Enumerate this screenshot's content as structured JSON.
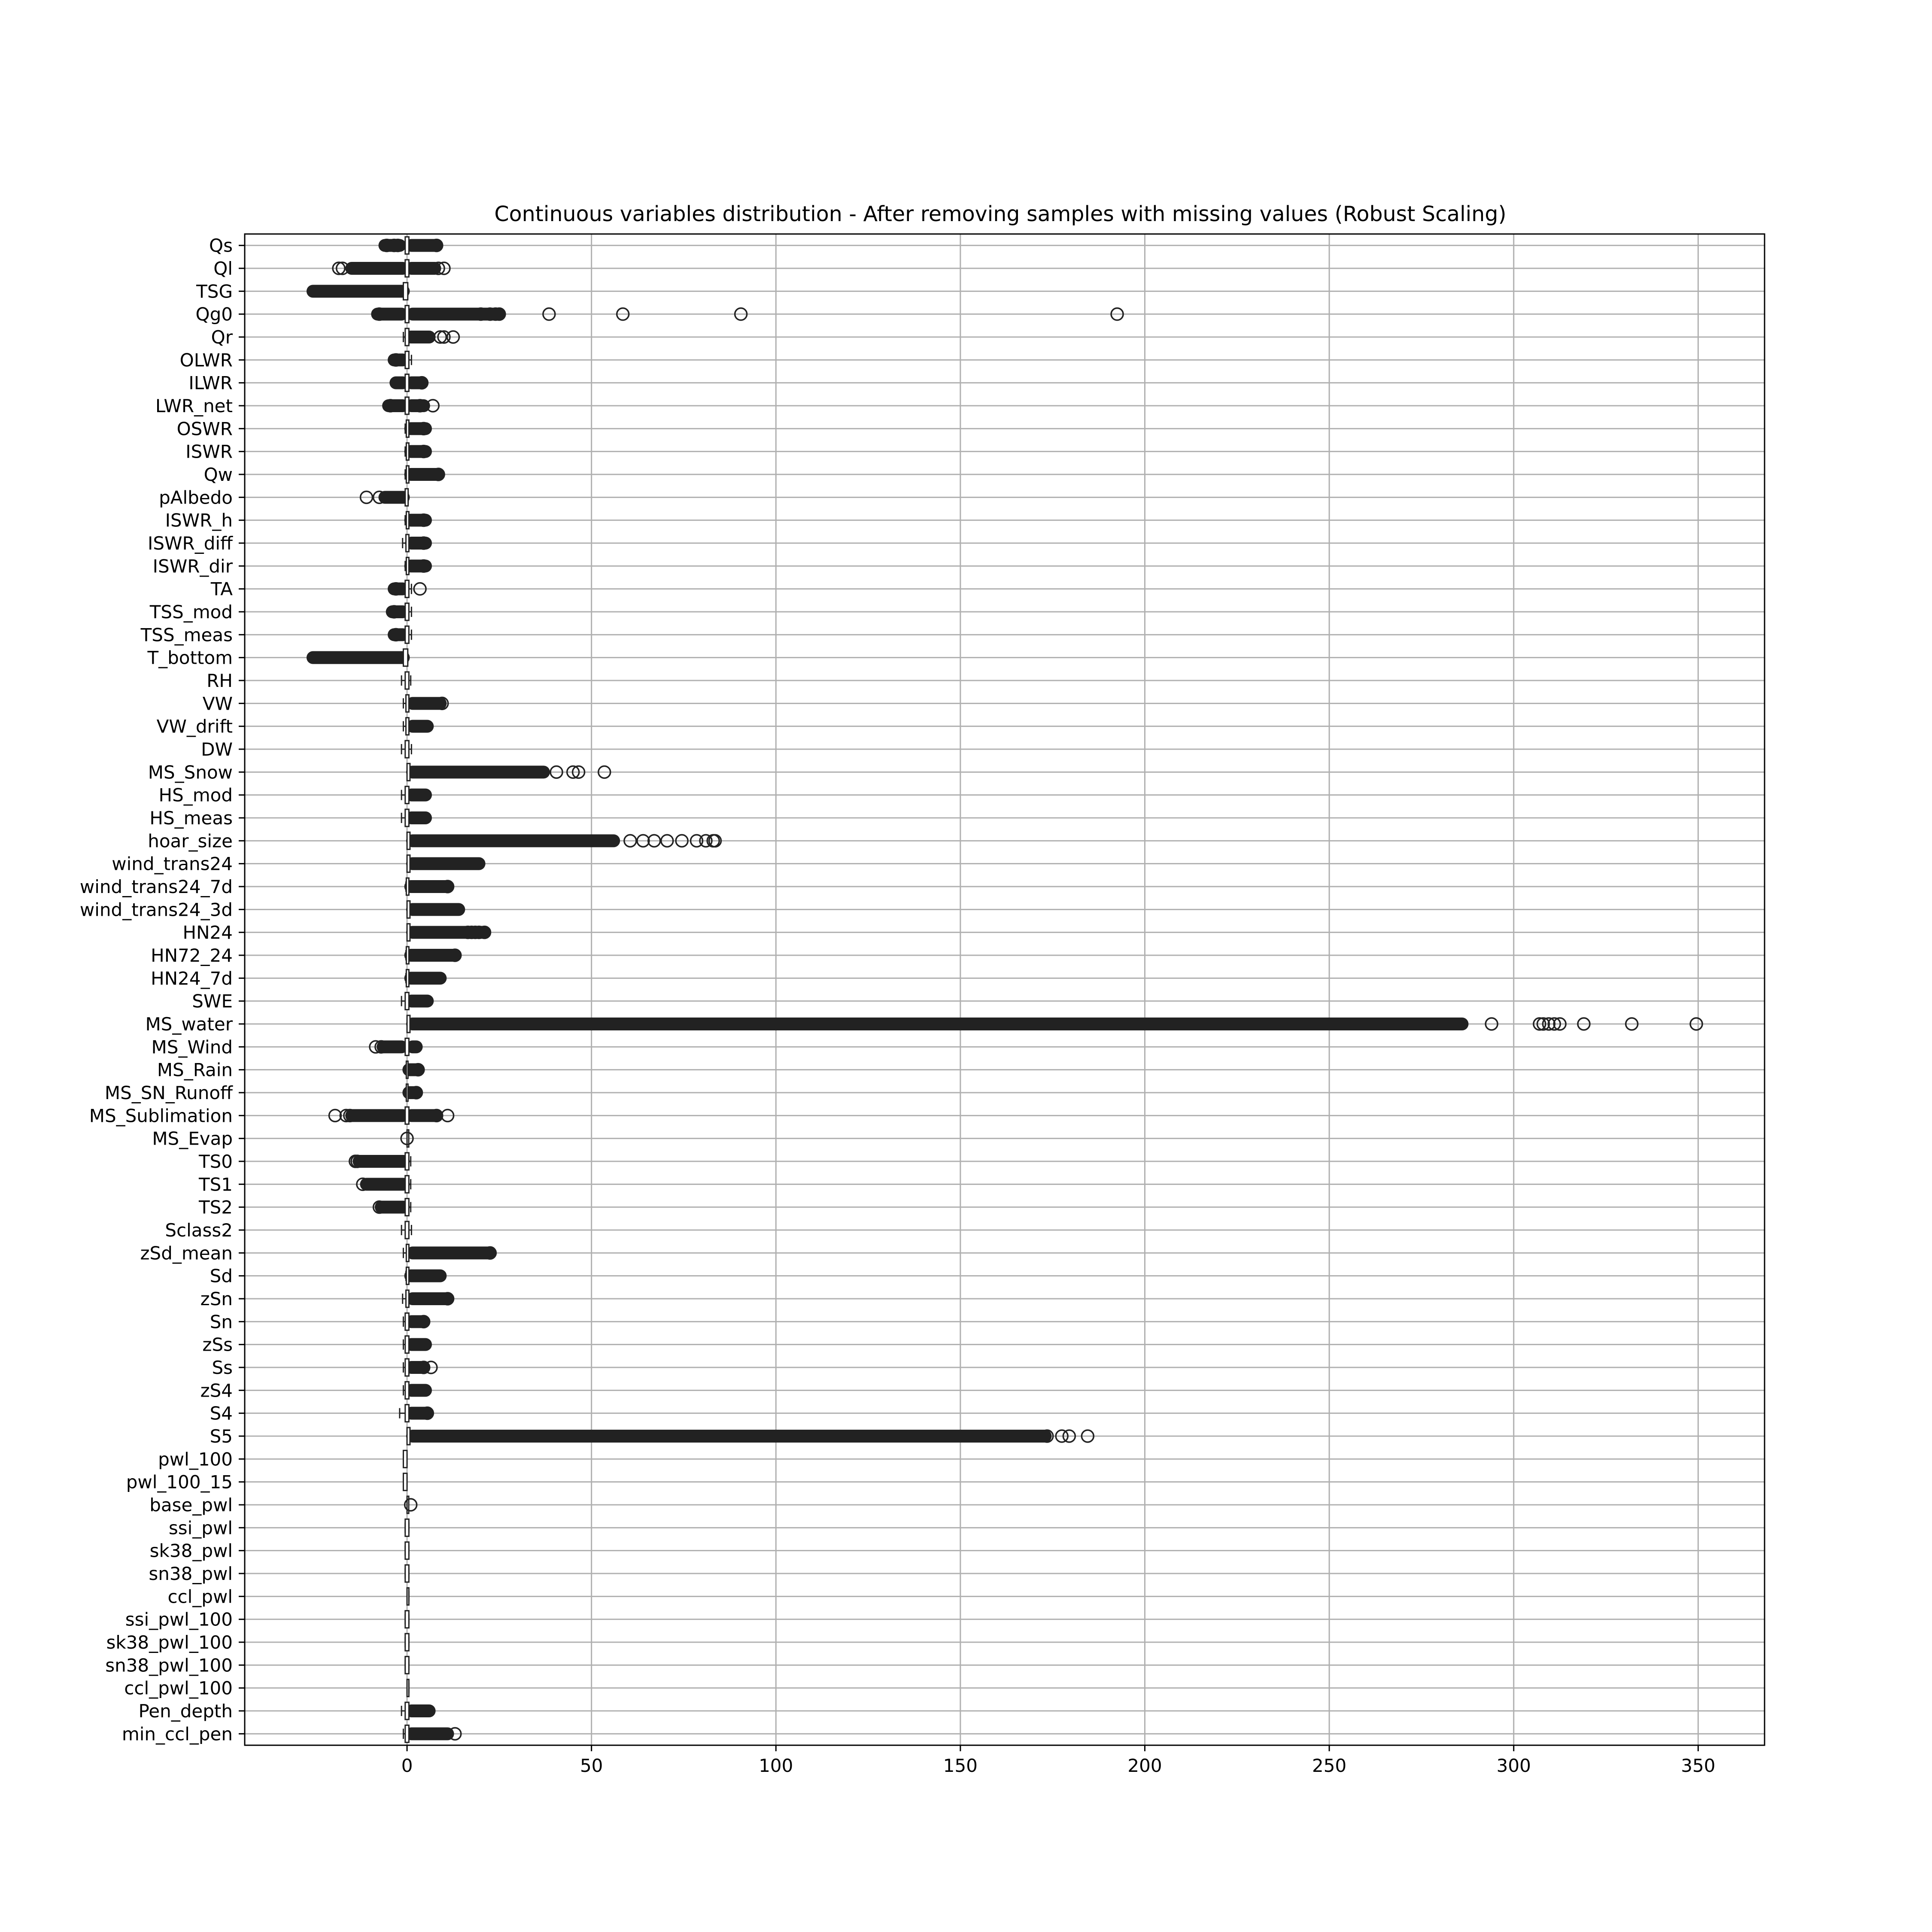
{
  "chart_data": {
    "type": "boxplot",
    "orientation": "horizontal",
    "title": "Continuous variables distribution - After removing samples with missing values (Robust Scaling)",
    "xlabel": "",
    "ylabel": "",
    "xlim": [
      -44,
      368
    ],
    "xticks": [
      0,
      50,
      100,
      150,
      200,
      250,
      300,
      350
    ],
    "grid": true,
    "box_color": "#222222",
    "grid_color": "#b0b0b0",
    "variables": [
      {
        "name": "Qs",
        "q1": -0.5,
        "q3": 0.5,
        "lo": -1.2,
        "hi": 1.2,
        "outliers": [
          [
            -6,
            -2
          ],
          [
            1.2,
            8
          ]
        ],
        "points": [
          -5.5,
          -3.5,
          -2.5,
          8
        ]
      },
      {
        "name": "Ql",
        "q1": -0.5,
        "q3": 0.5,
        "lo": -1.2,
        "hi": 1.2,
        "outliers": [
          [
            -15,
            -1.2
          ],
          [
            1.2,
            7.5
          ]
        ],
        "points": [
          -18.5,
          -17.5,
          8.5,
          10
        ]
      },
      {
        "name": "TSG",
        "q1": -1,
        "q3": 0.2,
        "lo": -1,
        "hi": 0.2,
        "outliers": [
          [
            -25.5,
            -1
          ]
        ],
        "points": []
      },
      {
        "name": "Qg0",
        "q1": -0.5,
        "q3": 0.5,
        "lo": -1.5,
        "hi": 1.5,
        "outliers": [
          [
            -8,
            -1.5
          ],
          [
            1.5,
            25
          ]
        ],
        "points": [
          -7.5,
          20,
          22.5,
          24,
          25,
          38.5,
          58.5,
          90.5,
          192.5
        ]
      },
      {
        "name": "Qr",
        "q1": -0.5,
        "q3": 0.5,
        "lo": -1,
        "hi": 1,
        "outliers": [
          [
            1,
            6
          ]
        ],
        "points": [
          9,
          10,
          12.5
        ]
      },
      {
        "name": "OLWR",
        "q1": -0.5,
        "q3": 0.5,
        "lo": -1.2,
        "hi": 1.2,
        "outliers": [
          [
            -3.5,
            -1.2
          ]
        ],
        "points": [
          -3
        ]
      },
      {
        "name": "ILWR",
        "q1": -0.5,
        "q3": 0.5,
        "lo": -1.2,
        "hi": 1.2,
        "outliers": [
          [
            -3,
            -1.2
          ],
          [
            1.2,
            4
          ]
        ],
        "points": [
          4
        ]
      },
      {
        "name": "LWR_net",
        "q1": -0.5,
        "q3": 0.5,
        "lo": -1.2,
        "hi": 1.2,
        "outliers": [
          [
            -5,
            -1.2
          ],
          [
            1.2,
            4.5
          ]
        ],
        "points": [
          -4.5,
          3.5,
          7
        ]
      },
      {
        "name": "OSWR",
        "q1": -0.2,
        "q3": 0.5,
        "lo": -0.5,
        "hi": 1,
        "outliers": [
          [
            1,
            5
          ]
        ],
        "points": [
          4.5
        ]
      },
      {
        "name": "ISWR",
        "q1": -0.2,
        "q3": 0.5,
        "lo": -0.5,
        "hi": 1,
        "outliers": [
          [
            1,
            5
          ]
        ],
        "points": [
          4.5
        ]
      },
      {
        "name": "Qw",
        "q1": -0.2,
        "q3": 0.5,
        "lo": -0.5,
        "hi": 1,
        "outliers": [
          [
            1,
            8.5
          ]
        ],
        "points": [
          8.5
        ]
      },
      {
        "name": "pAlbedo",
        "q1": -0.5,
        "q3": 0.3,
        "lo": -1,
        "hi": 0.3,
        "outliers": [
          [
            -6,
            -1
          ]
        ],
        "points": [
          -11,
          -7.5
        ]
      },
      {
        "name": "ISWR_h",
        "q1": -0.2,
        "q3": 0.5,
        "lo": -0.5,
        "hi": 1,
        "outliers": [
          [
            1,
            5
          ]
        ],
        "points": [
          4.5
        ]
      },
      {
        "name": "ISWR_diff",
        "q1": -0.3,
        "q3": 0.5,
        "lo": -1.2,
        "hi": 1.2,
        "outliers": [
          [
            1.2,
            5
          ]
        ],
        "points": [
          4.5
        ]
      },
      {
        "name": "ISWR_dir",
        "q1": -0.2,
        "q3": 0.5,
        "lo": -0.5,
        "hi": 1,
        "outliers": [
          [
            1,
            5
          ]
        ],
        "points": [
          4.5
        ]
      },
      {
        "name": "TA",
        "q1": -0.5,
        "q3": 0.5,
        "lo": -1.2,
        "hi": 1.2,
        "outliers": [
          [
            -3.5,
            -1.2
          ]
        ],
        "points": [
          -3,
          3.5
        ]
      },
      {
        "name": "TSS_mod",
        "q1": -0.5,
        "q3": 0.5,
        "lo": -1.2,
        "hi": 1.2,
        "outliers": [
          [
            -4,
            -1.2
          ]
        ],
        "points": [
          -3.5
        ]
      },
      {
        "name": "TSS_meas",
        "q1": -0.5,
        "q3": 0.5,
        "lo": -1.2,
        "hi": 1.2,
        "outliers": [
          [
            -3.5,
            -1.2
          ]
        ],
        "points": [
          -3
        ]
      },
      {
        "name": "T_bottom",
        "q1": -1,
        "q3": 0.2,
        "lo": -1,
        "hi": 0.2,
        "outliers": [
          [
            -25.5,
            -1
          ]
        ],
        "points": []
      },
      {
        "name": "RH",
        "q1": -0.5,
        "q3": 0.5,
        "lo": -1.5,
        "hi": 1,
        "outliers": [],
        "points": []
      },
      {
        "name": "VW",
        "q1": -0.3,
        "q3": 0.5,
        "lo": -1,
        "hi": 1.5,
        "outliers": [
          [
            1.5,
            9
          ]
        ],
        "points": [
          9.5
        ]
      },
      {
        "name": "VW_drift",
        "q1": -0.3,
        "q3": 0.5,
        "lo": -1,
        "hi": 1.5,
        "outliers": [
          [
            1.5,
            5.5
          ]
        ],
        "points": []
      },
      {
        "name": "DW",
        "q1": -0.5,
        "q3": 0.5,
        "lo": -1.5,
        "hi": 1.2,
        "outliers": [],
        "points": []
      },
      {
        "name": "MS_Snow",
        "q1": 0,
        "q3": 0.8,
        "lo": 0,
        "hi": 1.5,
        "outliers": [
          [
            1.5,
            37
          ]
        ],
        "points": [
          40.5,
          45,
          46.5,
          53.5
        ]
      },
      {
        "name": "HS_mod",
        "q1": -0.5,
        "q3": 0.5,
        "lo": -1.5,
        "hi": 1.2,
        "outliers": [
          [
            1.2,
            5
          ]
        ],
        "points": []
      },
      {
        "name": "HS_meas",
        "q1": -0.5,
        "q3": 0.5,
        "lo": -1.5,
        "hi": 1.2,
        "outliers": [
          [
            1.2,
            5
          ]
        ],
        "points": []
      },
      {
        "name": "hoar_size",
        "q1": 0,
        "q3": 0.8,
        "lo": 0,
        "hi": 1.5,
        "outliers": [
          [
            1.5,
            56
          ]
        ],
        "points": [
          60.5,
          64,
          67,
          70.5,
          74.5,
          78.5,
          81,
          83,
          83.5
        ]
      },
      {
        "name": "wind_trans24",
        "q1": 0,
        "q3": 0.8,
        "lo": 0,
        "hi": 1.5,
        "outliers": [
          [
            1.5,
            19.5
          ]
        ],
        "points": []
      },
      {
        "name": "wind_trans24_7d",
        "q1": -0.2,
        "q3": 0.5,
        "lo": -0.3,
        "hi": 1,
        "outliers": [
          [
            1,
            11
          ]
        ],
        "points": [
          11
        ]
      },
      {
        "name": "wind_trans24_3d",
        "q1": 0,
        "q3": 0.8,
        "lo": 0,
        "hi": 1.5,
        "outliers": [
          [
            1.5,
            14
          ]
        ],
        "points": []
      },
      {
        "name": "HN24",
        "q1": 0,
        "q3": 0.8,
        "lo": 0,
        "hi": 1.5,
        "outliers": [
          [
            1.5,
            21
          ]
        ],
        "points": [
          16.5,
          17.5,
          18.5,
          19.5,
          21
        ]
      },
      {
        "name": "HN72_24",
        "q1": -0.2,
        "q3": 0.5,
        "lo": -0.3,
        "hi": 1,
        "outliers": [
          [
            1,
            13
          ]
        ],
        "points": [
          13
        ]
      },
      {
        "name": "HN24_7d",
        "q1": -0.2,
        "q3": 0.5,
        "lo": -0.3,
        "hi": 1,
        "outliers": [
          [
            1,
            9
          ]
        ],
        "points": []
      },
      {
        "name": "SWE",
        "q1": -0.5,
        "q3": 0.5,
        "lo": -1.5,
        "hi": 1.2,
        "outliers": [
          [
            1.2,
            5.5
          ]
        ],
        "points": []
      },
      {
        "name": "MS_water",
        "q1": 0,
        "q3": 0.8,
        "lo": 0,
        "hi": 1.5,
        "outliers": [
          [
            1.5,
            286
          ]
        ],
        "points": [
          294,
          307,
          308,
          309.5,
          311,
          312.5,
          319,
          332,
          349.5
        ]
      },
      {
        "name": "MS_Wind",
        "q1": -0.5,
        "q3": 0.5,
        "lo": -1.5,
        "hi": 1.5,
        "outliers": [
          [
            -6.5,
            -1.5
          ],
          [
            1.5,
            2.5
          ]
        ],
        "points": [
          -8.5,
          -7
        ]
      },
      {
        "name": "MS_Rain",
        "q1": -0.2,
        "q3": 0.2,
        "lo": -0.2,
        "hi": 0.5,
        "outliers": [
          [
            0.5,
            3
          ]
        ],
        "points": [
          3
        ]
      },
      {
        "name": "MS_SN_Runoff",
        "q1": -0.2,
        "q3": 0.2,
        "lo": -0.2,
        "hi": 0.5,
        "outliers": [
          [
            0.5,
            2.5
          ]
        ],
        "points": [
          2.5
        ]
      },
      {
        "name": "MS_Sublimation",
        "q1": -0.5,
        "q3": 0.5,
        "lo": -1.2,
        "hi": 1.2,
        "outliers": [
          [
            -15,
            -1.2
          ],
          [
            1.2,
            8
          ]
        ],
        "points": [
          -19.5,
          -16.5,
          -15.5,
          8,
          11
        ]
      },
      {
        "name": "MS_Evap",
        "q1": 0,
        "q3": 0,
        "lo": 0,
        "hi": 0,
        "outliers": [],
        "points": [
          0
        ]
      },
      {
        "name": "TS0",
        "q1": -0.5,
        "q3": 0.5,
        "lo": -1,
        "hi": 1,
        "outliers": [
          [
            -13,
            -1
          ]
        ],
        "points": [
          -14,
          -13.5
        ]
      },
      {
        "name": "TS1",
        "q1": -0.5,
        "q3": 0.5,
        "lo": -1,
        "hi": 1,
        "outliers": [
          [
            -11,
            -1
          ]
        ],
        "points": [
          -12
        ]
      },
      {
        "name": "TS2",
        "q1": -0.5,
        "q3": 0.5,
        "lo": -1,
        "hi": 1,
        "outliers": [
          [
            -7,
            -1
          ]
        ],
        "points": [
          -7.5
        ]
      },
      {
        "name": "Sclass2",
        "q1": -0.5,
        "q3": 0.5,
        "lo": -1.5,
        "hi": 1.2,
        "outliers": [],
        "points": []
      },
      {
        "name": "zSd_mean",
        "q1": -0.2,
        "q3": 0.5,
        "lo": -1,
        "hi": 1.5,
        "outliers": [
          [
            1.5,
            22.5
          ]
        ],
        "points": [
          22.5
        ]
      },
      {
        "name": "Sd",
        "q1": -0.2,
        "q3": 0.5,
        "lo": -0.3,
        "hi": 1,
        "outliers": [
          [
            1,
            9
          ]
        ],
        "points": []
      },
      {
        "name": "zSn",
        "q1": -0.3,
        "q3": 0.5,
        "lo": -1.2,
        "hi": 1.5,
        "outliers": [
          [
            1.5,
            11
          ]
        ],
        "points": [
          11
        ]
      },
      {
        "name": "Sn",
        "q1": -0.5,
        "q3": 0.5,
        "lo": -1,
        "hi": 1.2,
        "outliers": [
          [
            1.2,
            4.5
          ]
        ],
        "points": [
          4.5
        ]
      },
      {
        "name": "zSs",
        "q1": -0.5,
        "q3": 0.5,
        "lo": -1,
        "hi": 1.2,
        "outliers": [
          [
            1.2,
            5
          ]
        ],
        "points": []
      },
      {
        "name": "Ss",
        "q1": -0.5,
        "q3": 0.5,
        "lo": -1,
        "hi": 1.2,
        "outliers": [
          [
            1.2,
            4.5
          ]
        ],
        "points": [
          4.5,
          6.5
        ]
      },
      {
        "name": "zS4",
        "q1": -0.5,
        "q3": 0.5,
        "lo": -1,
        "hi": 1.2,
        "outliers": [
          [
            1.2,
            5
          ]
        ],
        "points": []
      },
      {
        "name": "S4",
        "q1": -0.5,
        "q3": 0.5,
        "lo": -2,
        "hi": 1.2,
        "outliers": [
          [
            1.2,
            5.5
          ]
        ],
        "points": [
          5.5
        ]
      },
      {
        "name": "S5",
        "q1": 0,
        "q3": 0.8,
        "lo": 0,
        "hi": 1.5,
        "outliers": [
          [
            1.5,
            173
          ]
        ],
        "points": [
          173.5,
          177.5,
          179.5,
          184.5
        ]
      },
      {
        "name": "pwl_100",
        "q1": -1,
        "q3": 0,
        "lo": -1,
        "hi": 0,
        "outliers": [],
        "points": []
      },
      {
        "name": "pwl_100_15",
        "q1": -1,
        "q3": 0,
        "lo": -1,
        "hi": 0,
        "outliers": [],
        "points": []
      },
      {
        "name": "base_pwl",
        "q1": 0,
        "q3": 0,
        "lo": 0,
        "hi": 0,
        "outliers": [],
        "points": [
          1
        ]
      },
      {
        "name": "ssi_pwl",
        "q1": -0.5,
        "q3": 0.5,
        "lo": -0.5,
        "hi": 0.5,
        "outliers": [],
        "points": []
      },
      {
        "name": "sk38_pwl",
        "q1": -0.5,
        "q3": 0.5,
        "lo": -0.5,
        "hi": 0.5,
        "outliers": [],
        "points": []
      },
      {
        "name": "sn38_pwl",
        "q1": -0.5,
        "q3": 0.5,
        "lo": -0.5,
        "hi": 0.5,
        "outliers": [],
        "points": []
      },
      {
        "name": "ccl_pwl",
        "q1": 0,
        "q3": 0.5,
        "lo": 0,
        "hi": 0.5,
        "outliers": [],
        "points": []
      },
      {
        "name": "ssi_pwl_100",
        "q1": -0.5,
        "q3": 0.5,
        "lo": -0.5,
        "hi": 0.5,
        "outliers": [],
        "points": []
      },
      {
        "name": "sk38_pwl_100",
        "q1": -0.5,
        "q3": 0.5,
        "lo": -0.5,
        "hi": 0.5,
        "outliers": [],
        "points": []
      },
      {
        "name": "sn38_pwl_100",
        "q1": -0.5,
        "q3": 0.5,
        "lo": -0.5,
        "hi": 0.5,
        "outliers": [],
        "points": []
      },
      {
        "name": "ccl_pwl_100",
        "q1": 0,
        "q3": 0.5,
        "lo": 0,
        "hi": 0.5,
        "outliers": [],
        "points": []
      },
      {
        "name": "Pen_depth",
        "q1": -0.5,
        "q3": 0.5,
        "lo": -1.5,
        "hi": 1.2,
        "outliers": [
          [
            1.2,
            6
          ]
        ],
        "points": []
      },
      {
        "name": "min_ccl_pen",
        "q1": -0.5,
        "q3": 0.5,
        "lo": -1,
        "hi": 1.2,
        "outliers": [
          [
            1.2,
            11
          ]
        ],
        "points": [
          13
        ]
      }
    ]
  }
}
